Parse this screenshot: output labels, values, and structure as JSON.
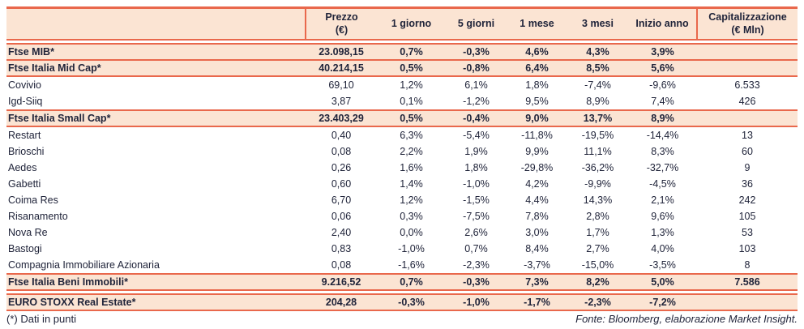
{
  "colors": {
    "accent_line": "#e9684c",
    "row_highlight": "#fbe4d3",
    "text": "#20243a"
  },
  "table": {
    "columns": [
      {
        "label": "",
        "sub": ""
      },
      {
        "label": "Prezzo",
        "sub": "(€)"
      },
      {
        "label": "1 giorno",
        "sub": ""
      },
      {
        "label": "5 giorni",
        "sub": ""
      },
      {
        "label": "1 mese",
        "sub": ""
      },
      {
        "label": "3 mesi",
        "sub": ""
      },
      {
        "label": "Inizio anno",
        "sub": ""
      },
      {
        "label": "Capitalizzazione",
        "sub": "(€ Mln)"
      }
    ],
    "rows": [
      {
        "name": "Ftse MIB*",
        "kind": "index",
        "gap_before": true,
        "values": [
          "23.098,15",
          "0,7%",
          "-0,3%",
          "4,6%",
          "4,3%",
          "3,9%",
          ""
        ]
      },
      {
        "name": "Ftse Italia Mid Cap*",
        "kind": "index",
        "gap_before": false,
        "values": [
          "40.214,15",
          "0,5%",
          "-0,8%",
          "6,4%",
          "8,5%",
          "5,6%",
          ""
        ]
      },
      {
        "name": "Covivio",
        "kind": "stock",
        "gap_before": false,
        "values": [
          "69,10",
          "1,2%",
          "6,1%",
          "1,8%",
          "-7,4%",
          "-9,6%",
          "6.533"
        ]
      },
      {
        "name": "Igd-Siiq",
        "kind": "stock",
        "gap_before": false,
        "values": [
          "3,87",
          "0,1%",
          "-1,2%",
          "9,5%",
          "8,9%",
          "7,4%",
          "426"
        ]
      },
      {
        "name": "Ftse Italia Small Cap*",
        "kind": "index",
        "gap_before": false,
        "values": [
          "23.403,29",
          "0,5%",
          "-0,4%",
          "9,0%",
          "13,7%",
          "8,9%",
          ""
        ]
      },
      {
        "name": "Restart",
        "kind": "stock",
        "gap_before": false,
        "values": [
          "0,40",
          "6,3%",
          "-5,4%",
          "-11,8%",
          "-19,5%",
          "-14,4%",
          "13"
        ]
      },
      {
        "name": "Brioschi",
        "kind": "stock",
        "gap_before": false,
        "values": [
          "0,08",
          "2,2%",
          "1,9%",
          "9,9%",
          "11,1%",
          "8,3%",
          "60"
        ]
      },
      {
        "name": "Aedes",
        "kind": "stock",
        "gap_before": false,
        "values": [
          "0,26",
          "1,6%",
          "1,8%",
          "-29,8%",
          "-36,2%",
          "-32,7%",
          "9"
        ]
      },
      {
        "name": "Gabetti",
        "kind": "stock",
        "gap_before": false,
        "values": [
          "0,60",
          "1,4%",
          "-1,0%",
          "4,2%",
          "-9,9%",
          "-4,5%",
          "36"
        ]
      },
      {
        "name": "Coima Res",
        "kind": "stock",
        "gap_before": false,
        "values": [
          "6,70",
          "1,2%",
          "-1,5%",
          "4,4%",
          "14,3%",
          "2,1%",
          "242"
        ]
      },
      {
        "name": "Risanamento",
        "kind": "stock",
        "gap_before": false,
        "values": [
          "0,06",
          "0,3%",
          "-7,5%",
          "7,8%",
          "2,8%",
          "9,6%",
          "105"
        ]
      },
      {
        "name": "Nova Re",
        "kind": "stock",
        "gap_before": false,
        "values": [
          "2,40",
          "0,0%",
          "2,6%",
          "3,0%",
          "1,7%",
          "1,3%",
          "53"
        ]
      },
      {
        "name": "Bastogi",
        "kind": "stock",
        "gap_before": false,
        "values": [
          "0,83",
          "-1,0%",
          "0,7%",
          "8,4%",
          "2,7%",
          "4,0%",
          "103"
        ]
      },
      {
        "name": "Compagnia Immobiliare Azionaria",
        "kind": "stock",
        "gap_before": false,
        "values": [
          "0,08",
          "-1,6%",
          "-2,3%",
          "-3,7%",
          "-15,0%",
          "-3,5%",
          "8"
        ]
      },
      {
        "name": "Ftse Italia Beni Immobili*",
        "kind": "index",
        "gap_before": false,
        "values": [
          "9.216,52",
          "0,7%",
          "-0,3%",
          "7,3%",
          "8,2%",
          "5,0%",
          "7.586"
        ]
      },
      {
        "name": "EURO STOXX Real Estate*",
        "kind": "index",
        "gap_before": true,
        "values": [
          "204,28",
          "-0,3%",
          "-1,0%",
          "-1,7%",
          "-2,3%",
          "-7,2%",
          ""
        ]
      }
    ]
  },
  "footer": {
    "footnote": "(*) Dati in punti",
    "source": "Fonte: Bloomberg, elaborazione Market Insight."
  }
}
